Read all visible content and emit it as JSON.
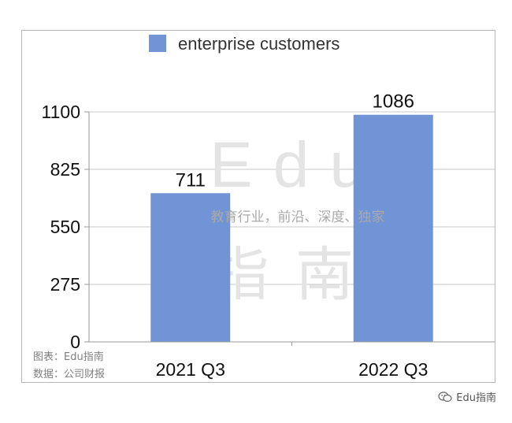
{
  "chart_data": {
    "type": "bar",
    "categories": [
      "2021 Q3",
      "2022 Q3"
    ],
    "series": [
      {
        "name": "enterprise customers",
        "values": [
          711,
          1086
        ],
        "color": "#7094d6"
      }
    ],
    "data_labels": [
      "711",
      "1086"
    ],
    "yticks": [
      "0",
      "275",
      "550",
      "825",
      "1100"
    ],
    "ylim": [
      0,
      1100
    ],
    "grid": true,
    "legend_position": "top-center"
  },
  "watermark": {
    "latin": "Edu",
    "cjk": "指南",
    "tagline": "教育行业，前沿、深度、独家"
  },
  "source": {
    "chart_line": "图表：Edu指南",
    "data_line": "数据：公司财报"
  },
  "footer": {
    "brand": "Edu指南",
    "icon": "wechat-icon"
  }
}
